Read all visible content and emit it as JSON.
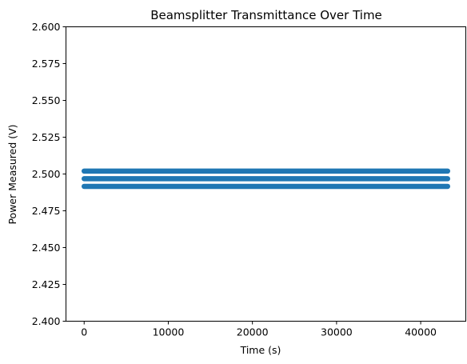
{
  "chart_data": {
    "type": "scatter",
    "title": "Beamsplitter Transmittance Over Time",
    "xlabel": "Time (s)",
    "ylabel": "Power Measured (V)",
    "xlim": [
      -2160,
      45360
    ],
    "ylim": [
      2.4,
      2.6
    ],
    "x_range": [
      0,
      43200
    ],
    "y_levels": [
      2.4916,
      2.4968,
      2.502
    ],
    "x_ticks": [
      0,
      10000,
      20000,
      30000,
      40000
    ],
    "x_tick_labels": [
      "0",
      "10000",
      "20000",
      "30000",
      "40000"
    ],
    "y_ticks": [
      2.4,
      2.425,
      2.45,
      2.475,
      2.5,
      2.525,
      2.55,
      2.575,
      2.6
    ],
    "y_tick_labels": [
      "2.400",
      "2.425",
      "2.450",
      "2.475",
      "2.500",
      "2.525",
      "2.550",
      "2.575",
      "2.600"
    ],
    "grid": false,
    "legend": "none",
    "color": "#1f77b4"
  }
}
